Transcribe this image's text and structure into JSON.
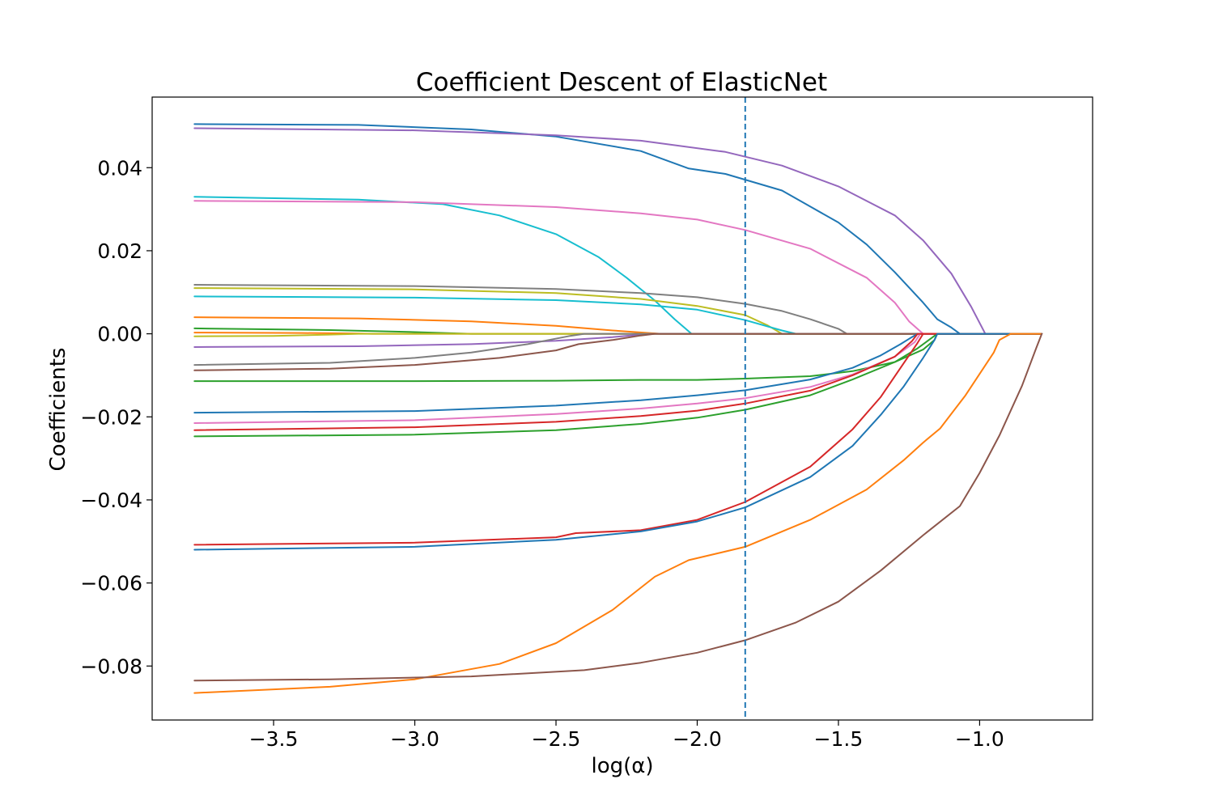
{
  "chart_data": {
    "type": "line",
    "title": "Coefficient Descent of ElasticNet",
    "xlabel": "log(α)",
    "ylabel": "Coefficients",
    "xlim": [
      -3.93,
      -0.6
    ],
    "ylim": [
      -0.093,
      0.057
    ],
    "xticks": [
      -3.5,
      -3.0,
      -2.5,
      -2.0,
      -1.5,
      -1.0
    ],
    "xtick_labels": [
      "−3.5",
      "−3.0",
      "−2.5",
      "−2.0",
      "−1.5",
      "−1.0"
    ],
    "yticks": [
      0.04,
      0.02,
      0.0,
      -0.02,
      -0.04,
      -0.06,
      -0.08
    ],
    "ytick_labels": [
      "0.04",
      "0.02",
      "0.00",
      "−0.02",
      "−0.04",
      "−0.06",
      "−0.08"
    ],
    "grid": false,
    "vline": {
      "x": -1.83,
      "color": "#1f77b4",
      "style": "dashed"
    },
    "series": [
      {
        "color": "#1f77b4",
        "x": [
          -3.78,
          -3.2,
          -2.8,
          -2.5,
          -2.2,
          -2.03,
          -1.9,
          -1.7,
          -1.5,
          -1.4,
          -1.3,
          -1.2,
          -1.15,
          -1.1,
          -1.07,
          -0.78
        ],
        "y": [
          0.0505,
          0.0503,
          0.0492,
          0.0475,
          0.044,
          0.0398,
          0.0385,
          0.0345,
          0.0268,
          0.0215,
          0.0148,
          0.0075,
          0.0035,
          0.0015,
          0.0,
          0.0
        ]
      },
      {
        "color": "#9467bd",
        "x": [
          -3.78,
          -3.0,
          -2.5,
          -2.2,
          -1.9,
          -1.7,
          -1.5,
          -1.3,
          -1.2,
          -1.1,
          -1.03,
          -0.98,
          -0.78
        ],
        "y": [
          0.0495,
          0.049,
          0.0478,
          0.0465,
          0.0438,
          0.0405,
          0.0355,
          0.0285,
          0.0225,
          0.0145,
          0.0065,
          0.0,
          0.0
        ]
      },
      {
        "color": "#17becf",
        "x": [
          -3.78,
          -3.2,
          -2.9,
          -2.7,
          -2.5,
          -2.35,
          -2.25,
          -2.15,
          -2.08,
          -2.02,
          -0.78
        ],
        "y": [
          0.033,
          0.0323,
          0.0312,
          0.0285,
          0.024,
          0.0185,
          0.0135,
          0.008,
          0.0035,
          0.0,
          0.0
        ]
      },
      {
        "color": "#e377c2",
        "x": [
          -3.78,
          -3.0,
          -2.5,
          -2.2,
          -2.0,
          -1.83,
          -1.6,
          -1.4,
          -1.3,
          -1.25,
          -1.2,
          -0.78
        ],
        "y": [
          0.032,
          0.0317,
          0.0305,
          0.029,
          0.0275,
          0.025,
          0.0205,
          0.0135,
          0.0075,
          0.003,
          0.0,
          0.0
        ]
      },
      {
        "color": "#7f7f7f",
        "x": [
          -3.78,
          -3.0,
          -2.5,
          -2.2,
          -2.0,
          -1.83,
          -1.7,
          -1.6,
          -1.5,
          -1.47,
          -0.78
        ],
        "y": [
          0.0118,
          0.0115,
          0.0108,
          0.0098,
          0.0088,
          0.0072,
          0.0055,
          0.0035,
          0.0012,
          0.0,
          0.0
        ]
      },
      {
        "color": "#bcbd22",
        "x": [
          -3.78,
          -3.0,
          -2.5,
          -2.2,
          -2.0,
          -1.83,
          -1.75,
          -1.7,
          -0.78
        ],
        "y": [
          0.011,
          0.0107,
          0.0098,
          0.0084,
          0.0067,
          0.0045,
          0.002,
          0.0,
          0.0
        ]
      },
      {
        "color": "#17becf",
        "x": [
          -3.78,
          -3.0,
          -2.5,
          -2.2,
          -2.0,
          -1.83,
          -1.7,
          -1.65,
          -0.78
        ],
        "y": [
          0.009,
          0.0087,
          0.0081,
          0.0071,
          0.0058,
          0.0033,
          0.0008,
          0.0,
          0.0
        ]
      },
      {
        "color": "#ff7f0e",
        "x": [
          -3.78,
          -3.2,
          -2.8,
          -2.5,
          -2.3,
          -2.15,
          -2.13,
          -0.78
        ],
        "y": [
          0.004,
          0.0037,
          0.003,
          0.0019,
          0.0008,
          0.0001,
          0.0,
          0.0
        ]
      },
      {
        "color": "#2ca02c",
        "x": [
          -3.78,
          -3.3,
          -3.0,
          -2.85,
          -2.8,
          -0.78
        ],
        "y": [
          0.0013,
          0.0009,
          0.0004,
          0.0001,
          0.0,
          0.0
        ]
      },
      {
        "color": "#ff7f0e",
        "x": [
          -3.78,
          -3.4,
          -3.2,
          -3.15,
          -0.78
        ],
        "y": [
          0.0003,
          0.0002,
          5e-05,
          0.0,
          0.0
        ]
      },
      {
        "color": "#bcbd22",
        "x": [
          -3.78,
          -3.5,
          -3.3,
          -3.2,
          -0.78
        ],
        "y": [
          -0.0006,
          -0.0005,
          -0.0002,
          0.0,
          0.0
        ]
      },
      {
        "color": "#9467bd",
        "x": [
          -3.78,
          -3.2,
          -2.8,
          -2.5,
          -2.3,
          -2.2,
          -2.17,
          -0.78
        ],
        "y": [
          -0.0032,
          -0.003,
          -0.0025,
          -0.0017,
          -0.0008,
          -0.0002,
          0.0,
          0.0
        ]
      },
      {
        "color": "#7f7f7f",
        "x": [
          -3.78,
          -3.3,
          -3.0,
          -2.8,
          -2.6,
          -2.45,
          -2.4,
          -0.78
        ],
        "y": [
          -0.0075,
          -0.007,
          -0.0058,
          -0.0045,
          -0.0025,
          -0.0005,
          0.0,
          0.0
        ]
      },
      {
        "color": "#8c564b",
        "x": [
          -3.78,
          -3.3,
          -3.0,
          -2.7,
          -2.5,
          -2.42,
          -2.3,
          -2.2,
          -2.15,
          -0.78
        ],
        "y": [
          -0.0088,
          -0.0084,
          -0.0075,
          -0.0058,
          -0.004,
          -0.0025,
          -0.0015,
          -0.0004,
          0.0,
          0.0
        ]
      },
      {
        "color": "#2ca02c",
        "x": [
          -3.78,
          -3.0,
          -2.5,
          -2.2,
          -2.0,
          -1.83,
          -1.6,
          -1.45,
          -1.3,
          -1.2,
          -1.16,
          -1.15,
          -0.78
        ],
        "y": [
          -0.0114,
          -0.0114,
          -0.0113,
          -0.0111,
          -0.0111,
          -0.0108,
          -0.0102,
          -0.009,
          -0.0068,
          -0.0038,
          -0.0015,
          0.0,
          0.0
        ]
      },
      {
        "color": "#1f77b4",
        "x": [
          -3.78,
          -3.0,
          -2.5,
          -2.2,
          -2.0,
          -1.83,
          -1.6,
          -1.45,
          -1.35,
          -1.28,
          -1.24,
          -1.22,
          -0.78
        ],
        "y": [
          -0.019,
          -0.0186,
          -0.0173,
          -0.016,
          -0.0148,
          -0.0136,
          -0.011,
          -0.0082,
          -0.0052,
          -0.0025,
          -0.0008,
          0.0,
          0.0
        ]
      },
      {
        "color": "#e377c2",
        "x": [
          -3.78,
          -3.0,
          -2.5,
          -2.2,
          -2.0,
          -1.83,
          -1.6,
          -1.45,
          -1.3,
          -1.23,
          -1.21,
          -0.78
        ],
        "y": [
          -0.0215,
          -0.0208,
          -0.0193,
          -0.018,
          -0.0168,
          -0.0155,
          -0.0128,
          -0.0098,
          -0.0055,
          -0.002,
          0.0,
          0.0
        ]
      },
      {
        "color": "#d62728",
        "x": [
          -3.78,
          -3.0,
          -2.5,
          -2.2,
          -2.0,
          -1.83,
          -1.6,
          -1.45,
          -1.3,
          -1.24,
          -1.22,
          -0.78
        ],
        "y": [
          -0.0232,
          -0.0225,
          -0.0212,
          -0.0198,
          -0.0185,
          -0.0168,
          -0.0137,
          -0.01,
          -0.0055,
          -0.0018,
          0.0,
          0.0
        ]
      },
      {
        "color": "#2ca02c",
        "x": [
          -3.78,
          -3.0,
          -2.5,
          -2.2,
          -2.0,
          -1.83,
          -1.6,
          -1.45,
          -1.3,
          -1.22,
          -1.18,
          -1.15,
          -0.78
        ],
        "y": [
          -0.0247,
          -0.0243,
          -0.0232,
          -0.0217,
          -0.0202,
          -0.0183,
          -0.0148,
          -0.011,
          -0.0068,
          -0.0035,
          -0.0015,
          0.0,
          0.0
        ]
      },
      {
        "color": "#d62728",
        "x": [
          -3.78,
          -3.0,
          -2.5,
          -2.43,
          -2.2,
          -2.0,
          -1.83,
          -1.6,
          -1.45,
          -1.35,
          -1.28,
          -1.22,
          -1.2,
          -0.78
        ],
        "y": [
          -0.0508,
          -0.0503,
          -0.049,
          -0.048,
          -0.0473,
          -0.0448,
          -0.0405,
          -0.032,
          -0.023,
          -0.0152,
          -0.0082,
          -0.0022,
          0.0,
          0.0
        ]
      },
      {
        "color": "#1f77b4",
        "x": [
          -3.78,
          -3.0,
          -2.5,
          -2.2,
          -2.0,
          -1.83,
          -1.6,
          -1.45,
          -1.35,
          -1.27,
          -1.2,
          -1.16,
          -1.15,
          -0.78
        ],
        "y": [
          -0.052,
          -0.0513,
          -0.0496,
          -0.0476,
          -0.0452,
          -0.0418,
          -0.0345,
          -0.027,
          -0.0195,
          -0.0128,
          -0.0058,
          -0.0015,
          0.0,
          0.0
        ]
      },
      {
        "color": "#ff7f0e",
        "x": [
          -3.78,
          -3.3,
          -3.0,
          -2.7,
          -2.5,
          -2.3,
          -2.15,
          -2.03,
          -1.83,
          -1.6,
          -1.4,
          -1.27,
          -1.2,
          -1.14,
          -1.05,
          -0.95,
          -0.93,
          -0.89,
          -0.78
        ],
        "y": [
          -0.0865,
          -0.085,
          -0.0832,
          -0.0795,
          -0.0745,
          -0.0665,
          -0.0585,
          -0.0545,
          -0.0513,
          -0.0448,
          -0.0375,
          -0.0305,
          -0.0262,
          -0.0228,
          -0.0148,
          -0.0045,
          -0.0015,
          0.0,
          0.0
        ]
      },
      {
        "color": "#8c564b",
        "x": [
          -3.78,
          -3.3,
          -2.8,
          -2.4,
          -2.2,
          -2.0,
          -1.83,
          -1.65,
          -1.5,
          -1.35,
          -1.2,
          -1.07,
          -1.0,
          -0.93,
          -0.85,
          -0.8,
          -0.78
        ],
        "y": [
          -0.0835,
          -0.0832,
          -0.0825,
          -0.081,
          -0.0792,
          -0.0768,
          -0.0738,
          -0.0695,
          -0.0645,
          -0.057,
          -0.0485,
          -0.0415,
          -0.0335,
          -0.0245,
          -0.0125,
          -0.0035,
          0.0
        ]
      }
    ]
  }
}
